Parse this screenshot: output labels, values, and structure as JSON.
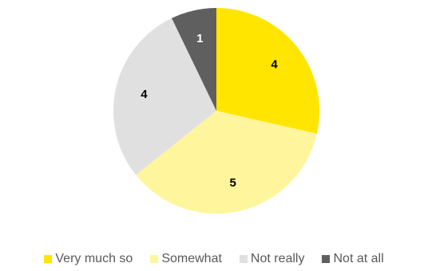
{
  "chart_data": {
    "type": "pie",
    "title": "",
    "categories": [
      "Very much so",
      "Somewhat",
      "Not really",
      "Not at all"
    ],
    "values": [
      4,
      5,
      4,
      1
    ],
    "colors": [
      "#FFE500",
      "#FFF59C",
      "#E0E0E0",
      "#5F5F5F"
    ],
    "start_angle_deg": 0,
    "direction": "clockwise",
    "data_labels": [
      "4",
      "5",
      "4",
      "1"
    ],
    "legend_position": "bottom"
  }
}
